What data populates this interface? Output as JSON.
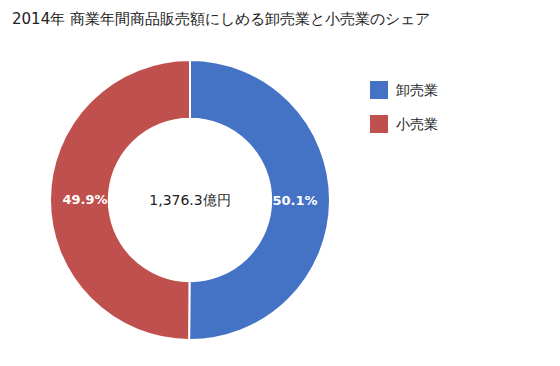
{
  "chart_data": {
    "type": "donut",
    "title": "2014年 商業年間商品販売額にしめる卸売業と小売業のシェア",
    "categories": [
      "卸売業",
      "小売業"
    ],
    "values": [
      50.1,
      49.9
    ],
    "value_labels": [
      "50.1%",
      "49.9%"
    ],
    "colors": [
      "#4472c4",
      "#c0504d"
    ],
    "data_labels": true,
    "legend": "right",
    "annotations": [
      "1,376.3億円"
    ]
  }
}
